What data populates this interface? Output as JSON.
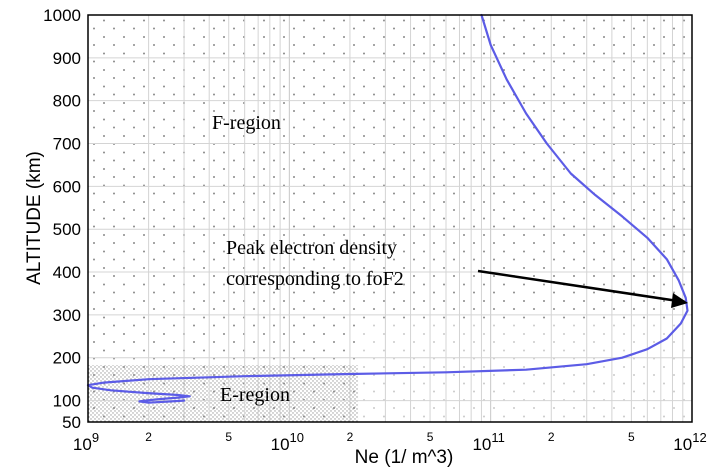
{
  "chart_data": {
    "type": "line",
    "xlabel": "Ne (1/ m^3)",
    "ylabel": "ALTITUDE (km)",
    "xscale": "log",
    "xlim": [
      1000000000,
      1000000000000
    ],
    "ylim": [
      50,
      1000
    ],
    "x_ticks": [
      {
        "base": "10",
        "exp": "9"
      },
      {
        "base": "10",
        "exp": "10"
      },
      {
        "base": "10",
        "exp": "11"
      },
      {
        "base": "10",
        "exp": "12"
      }
    ],
    "x_minor_ticks": [
      "2",
      "5",
      "2",
      "5",
      "2",
      "5"
    ],
    "y_ticks": [
      "1000",
      "900",
      "800",
      "700",
      "600",
      "500",
      "400",
      "300",
      "200",
      "100",
      "50"
    ],
    "grid": true,
    "line_color": "#5c5ce6",
    "series": [
      {
        "values": [
          {
            "x": 3000000000,
            "y": 100
          },
          {
            "x": 2000000000,
            "y": 95
          },
          {
            "x": 1800000000,
            "y": 98
          },
          {
            "x": 2200000000,
            "y": 103
          },
          {
            "x": 2800000000,
            "y": 107
          },
          {
            "x": 3200000000,
            "y": 110
          },
          {
            "x": 2800000000,
            "y": 113
          },
          {
            "x": 1900000000,
            "y": 118
          },
          {
            "x": 1300000000,
            "y": 124
          },
          {
            "x": 1050000000,
            "y": 130
          },
          {
            "x": 1000000000,
            "y": 136
          },
          {
            "x": 1200000000,
            "y": 142
          },
          {
            "x": 2000000000,
            "y": 150
          },
          {
            "x": 6000000000,
            "y": 157
          },
          {
            "x": 20000000000,
            "y": 162
          },
          {
            "x": 60000000000,
            "y": 166
          },
          {
            "x": 150000000000,
            "y": 172
          },
          {
            "x": 300000000000,
            "y": 185
          },
          {
            "x": 450000000000,
            "y": 200
          },
          {
            "x": 600000000000,
            "y": 220
          },
          {
            "x": 750000000000,
            "y": 245
          },
          {
            "x": 880000000000,
            "y": 280
          },
          {
            "x": 950000000000,
            "y": 310
          },
          {
            "x": 930000000000,
            "y": 340
          },
          {
            "x": 860000000000,
            "y": 380
          },
          {
            "x": 750000000000,
            "y": 430
          },
          {
            "x": 600000000000,
            "y": 480
          },
          {
            "x": 450000000000,
            "y": 530
          },
          {
            "x": 330000000000,
            "y": 580
          },
          {
            "x": 250000000000,
            "y": 630
          },
          {
            "x": 190000000000,
            "y": 700
          },
          {
            "x": 150000000000,
            "y": 770
          },
          {
            "x": 120000000000,
            "y": 850
          },
          {
            "x": 100000000000,
            "y": 930
          },
          {
            "x": 90000000000,
            "y": 1000
          }
        ]
      }
    ],
    "annotations": {
      "f_region": "F-region",
      "e_region": "E-region",
      "peak_line1": "Peak electron density",
      "peak_line2": "corresponding to foF2"
    }
  }
}
